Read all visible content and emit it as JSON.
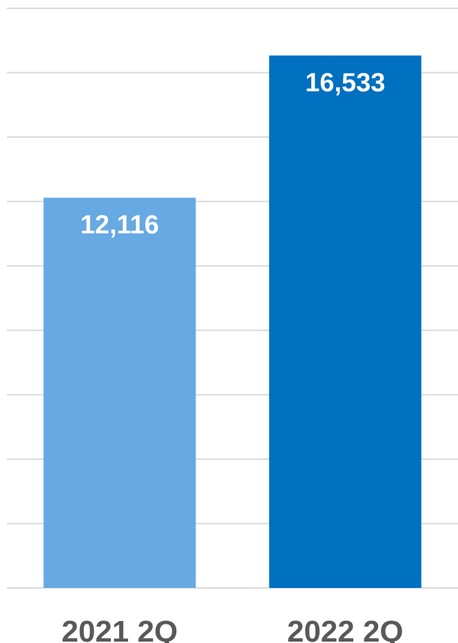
{
  "chart_data": {
    "type": "bar",
    "title": "",
    "xlabel": "",
    "ylabel": "",
    "categories": [
      "2021 2Q",
      "2022 2Q"
    ],
    "values": [
      12116,
      16533
    ],
    "data_labels": [
      "12,116",
      "16,533"
    ],
    "ylim": [
      0,
      18000
    ],
    "grid": true,
    "legend": "none",
    "bar_colors": [
      "#67a9e2",
      "#0070c0"
    ]
  }
}
